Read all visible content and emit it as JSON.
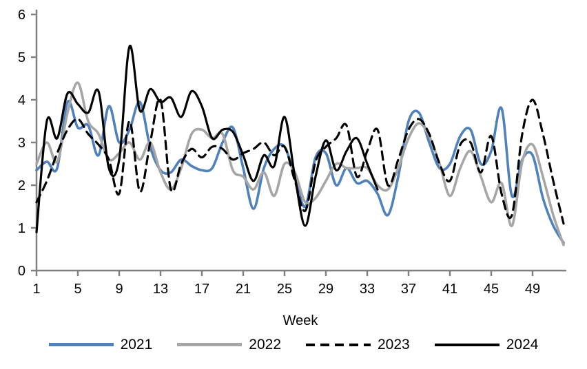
{
  "chart_data": {
    "type": "line",
    "title": "",
    "xlabel": "Week",
    "ylabel": "",
    "xlim": [
      1,
      52.5
    ],
    "ylim": [
      0,
      6
    ],
    "x_ticks": [
      1,
      5,
      9,
      13,
      17,
      21,
      25,
      29,
      33,
      37,
      41,
      45,
      49
    ],
    "y_ticks": [
      0,
      1,
      2,
      3,
      4,
      5,
      6
    ],
    "grid": false,
    "legend_position": "bottom",
    "axis_color": "#808080",
    "smoothing": "spline",
    "x_weeks": "1 through 52 (weekly data)",
    "series": [
      {
        "name": "2021",
        "color": "#4f81bd",
        "style": "solid",
        "stroke_width": 3.6,
        "values": [
          2.35,
          2.55,
          2.4,
          3.95,
          3.35,
          3.4,
          2.7,
          3.85,
          3.0,
          3.3,
          3.95,
          2.9,
          2.35,
          2.3,
          2.6,
          2.45,
          2.35,
          2.4,
          3.0,
          3.35,
          2.4,
          1.45,
          2.4,
          2.85,
          2.9,
          2.2,
          1.5,
          2.65,
          2.75,
          2.0,
          2.4,
          2.05,
          2.1,
          1.8,
          1.3,
          2.2,
          3.5,
          3.7,
          3.0,
          2.4,
          2.5,
          3.15,
          3.3,
          2.5,
          2.8,
          3.8,
          1.75,
          2.6,
          2.7,
          1.7,
          1.05,
          0.65
        ]
      },
      {
        "name": "2022",
        "color": "#a6a6a6",
        "style": "solid",
        "stroke_width": 3.6,
        "values": [
          2.5,
          3.0,
          2.55,
          3.7,
          4.4,
          3.5,
          3.2,
          2.6,
          2.75,
          3.0,
          2.6,
          3.0,
          2.3,
          1.9,
          2.4,
          3.2,
          3.3,
          3.1,
          3.2,
          2.35,
          2.2,
          1.9,
          2.3,
          1.75,
          2.5,
          2.3,
          1.6,
          1.7,
          2.1,
          2.5,
          2.4,
          2.4,
          2.4,
          2.0,
          1.9,
          2.4,
          3.1,
          3.45,
          3.15,
          2.5,
          1.75,
          2.4,
          2.8,
          2.2,
          1.6,
          2.05,
          1.05,
          2.55,
          2.95,
          2.2,
          1.3,
          0.6
        ]
      },
      {
        "name": "2023",
        "color": "#000000",
        "style": "dashed",
        "stroke_width": 3.2,
        "values": [
          1.6,
          2.1,
          2.75,
          3.3,
          3.55,
          3.2,
          2.95,
          2.6,
          1.8,
          3.5,
          1.85,
          3.0,
          4.0,
          1.9,
          2.5,
          2.85,
          2.65,
          2.9,
          2.85,
          2.6,
          2.75,
          2.85,
          3.0,
          2.7,
          2.9,
          2.1,
          1.4,
          2.55,
          2.9,
          3.1,
          3.4,
          2.2,
          2.8,
          3.3,
          2.0,
          2.6,
          3.3,
          3.55,
          3.2,
          2.5,
          2.1,
          2.95,
          3.0,
          2.3,
          3.15,
          1.8,
          1.3,
          3.2,
          4.0,
          3.2,
          2.1,
          1.1
        ]
      },
      {
        "name": "2024",
        "color": "#000000",
        "style": "solid",
        "stroke_width": 3.2,
        "note_ends_at_week": 34,
        "values": [
          0.9,
          3.5,
          3.1,
          4.15,
          3.9,
          3.7,
          4.2,
          2.4,
          2.6,
          5.25,
          3.75,
          4.25,
          3.95,
          4.05,
          3.6,
          4.2,
          3.85,
          3.1,
          3.3,
          3.25,
          2.7,
          2.1,
          2.7,
          2.45,
          3.6,
          2.2,
          1.05,
          2.2,
          3.05,
          2.35,
          2.8,
          3.1,
          2.5,
          1.9
        ]
      }
    ]
  },
  "legend": {
    "items": [
      {
        "label": "2021",
        "swatch": "blue-solid-line"
      },
      {
        "label": "2022",
        "swatch": "gray-solid-line"
      },
      {
        "label": "2023",
        "swatch": "black-dashed-line"
      },
      {
        "label": "2024",
        "swatch": "black-solid-line"
      }
    ]
  }
}
